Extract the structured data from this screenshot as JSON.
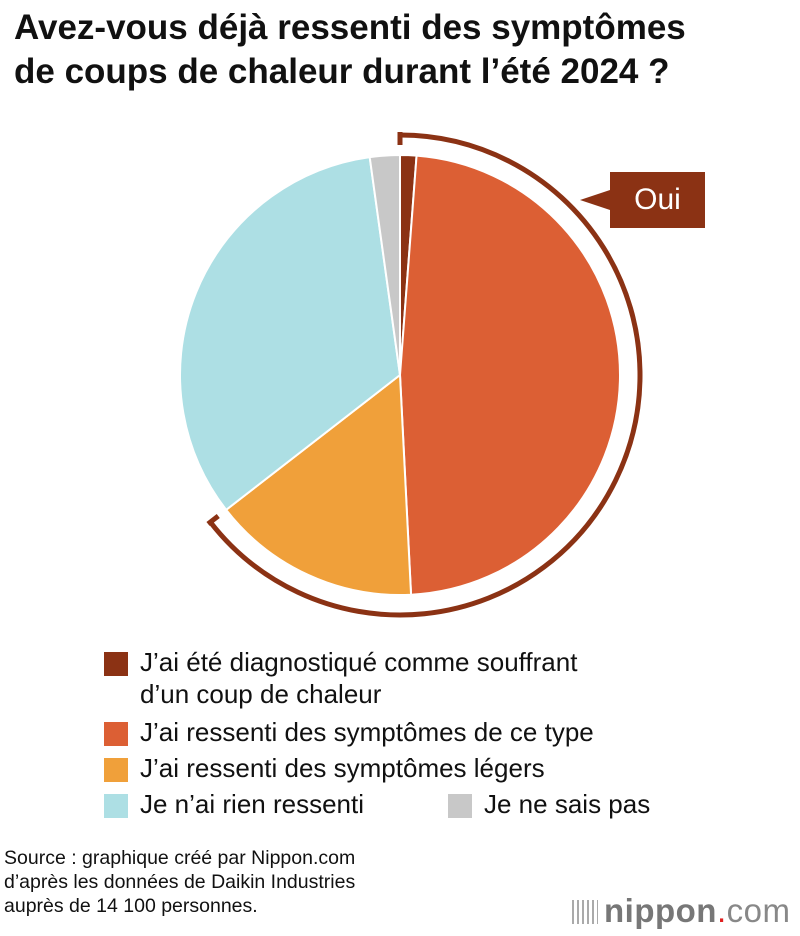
{
  "title_line1": "Avez-vous déjà ressenti des symptômes",
  "title_line2": "de coups de chaleur durant l’été 2024 ?",
  "chart_data": {
    "type": "pie",
    "title": "Avez-vous déjà ressenti des symptômes de coups de chaleur durant l’été 2024 ?",
    "categories": [
      "J’ai été diagnostiqué comme souffrant d’un coup de chaleur",
      "J’ai ressenti des symptômes de ce type",
      "J’ai ressenti des symptômes légers",
      "Je n’ai rien ressenti",
      "Je ne sais pas"
    ],
    "values": [
      1.2,
      48.0,
      15.3,
      33.3,
      2.2
    ],
    "colors": [
      "#8b3214",
      "#dc5f34",
      "#f0a03a",
      "#addfe4",
      "#c8c8c8"
    ],
    "annotation": "Oui",
    "annotation_color": "#8b3214",
    "legend_placement": "bottom"
  },
  "legend": {
    "l0a": "J’ai été diagnostiqué comme souffrant",
    "l0b": "d’un coup de chaleur",
    "l1": "J’ai ressenti des symptômes de ce type",
    "l2": "J’ai ressenti des symptômes légers",
    "l3": "Je n’ai rien ressenti",
    "l4": "Je ne sais pas"
  },
  "source": [
    "Source : graphique créé par Nippon.com",
    "d’après les données de Daikin Industries",
    "auprès de 14 100 personnes."
  ],
  "logo": {
    "name": "nippon",
    ".": ".",
    "com": "com"
  }
}
